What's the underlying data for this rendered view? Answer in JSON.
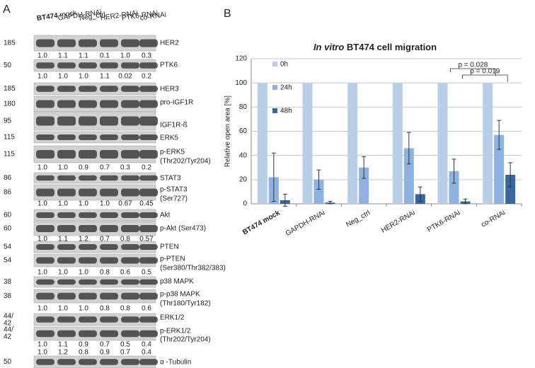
{
  "panel_a": {
    "letter": "A",
    "lanes": [
      {
        "bold": "BT474",
        "rest": "mock"
      },
      "GAPDH-RNAi",
      "Neg_ctrl",
      "HER2-RNAi",
      "PTK6-RNAi",
      "co-RNAi"
    ],
    "rows": [
      {
        "mw": [
          "185"
        ],
        "label": [
          "HER2"
        ],
        "quant": [
          [
            "1.0",
            "1.1",
            "1.1",
            "0.1",
            "1.0",
            "0.3"
          ]
        ]
      },
      {
        "mw": [
          "50"
        ],
        "label": [
          "PTK6"
        ],
        "quant": [
          [
            "1.0",
            "1.0",
            "1.0",
            "1.1",
            "0.02",
            "0.2"
          ]
        ]
      },
      {
        "mw": [
          "185"
        ],
        "label": [
          "HER3"
        ],
        "quant": []
      },
      {
        "mw": [
          "180"
        ],
        "label": [
          "pro-IGF1R"
        ],
        "quant": []
      },
      {
        "mw": [
          "95"
        ],
        "label": [
          "IGF1R-ß"
        ],
        "quant": []
      },
      {
        "mw": [
          "115"
        ],
        "label": [
          "ERK5"
        ],
        "quant": []
      },
      {
        "mw": [
          "115"
        ],
        "label": [
          "p-ERK5",
          "(Thr202/Tyr204)"
        ],
        "quant": [
          [
            "1.0",
            "1.0",
            "0.9",
            "0.7",
            "0.3",
            "0.2"
          ]
        ]
      },
      {
        "mw": [
          "86"
        ],
        "label": [
          "STAT3"
        ],
        "quant": []
      },
      {
        "mw": [
          "86"
        ],
        "label": [
          "p-STAT3",
          "(Ser727)"
        ],
        "quant": [
          [
            "1.0",
            "1.0",
            "1.0",
            "1.0",
            "0.67",
            "0.45"
          ]
        ]
      },
      {
        "mw": [
          "60"
        ],
        "label": [
          "Akt"
        ],
        "quant": []
      },
      {
        "mw": [
          "60"
        ],
        "label": [
          "p-Akt (Ser473)"
        ],
        "quant": [
          [
            "1.0",
            "1.1",
            "1.2",
            "0.7",
            "0.8",
            "0.57"
          ]
        ]
      },
      {
        "mw": [
          "54"
        ],
        "label": [
          "PTEN"
        ],
        "quant": []
      },
      {
        "mw": [
          "54"
        ],
        "label": [
          "p-PTEN",
          "(Ser380/Thr382/383)"
        ],
        "quant": [
          [
            "1.0",
            "1.0",
            "1.0",
            "0.8",
            "0.6",
            "0.5"
          ]
        ]
      },
      {
        "mw": [
          "38"
        ],
        "label": [
          "p38 MAPK"
        ],
        "quant": []
      },
      {
        "mw": [
          "38"
        ],
        "label": [
          "p-p38 MAPK",
          "(Thr180/Tyr182)"
        ],
        "quant": [
          [
            "1.0",
            "1.0",
            "1.0",
            "0.8",
            "0.8",
            "0.6"
          ]
        ]
      },
      {
        "mw": [
          "44/",
          "42"
        ],
        "label": [
          "ERK1/2"
        ],
        "quant": []
      },
      {
        "mw": [
          "44/",
          "42"
        ],
        "label": [
          "p-ERK1/2",
          "(Thr202/Tyr204)"
        ],
        "quant": [
          [
            "1.0",
            "1.1",
            "0.9",
            "0.7",
            "0.5",
            "0.4"
          ],
          [
            "1.0",
            "1.2",
            "0.8",
            "0.9",
            "0.7",
            "0.4"
          ]
        ]
      },
      {
        "mw": [
          "50"
        ],
        "label": [
          "α -Tubulin"
        ],
        "quant": []
      }
    ]
  },
  "panel_b": {
    "letter": "B"
  },
  "chart_data": {
    "type": "bar",
    "title_italic": "In vitro",
    "title": "BT474 cell migration",
    "y_label": "Relative open area [%]",
    "categories": [
      "BT474 mock",
      "GAPDH-RNAi",
      "Neg_ctrl",
      "HER2-RNAi",
      "PTK6-RNAi",
      "co-RNAi"
    ],
    "series": [
      {
        "name": "0h",
        "color": "#b9cfe8",
        "values": [
          100,
          100,
          100,
          100,
          100,
          100
        ],
        "errors": [
          0,
          0,
          0,
          0,
          0,
          0
        ]
      },
      {
        "name": "24h",
        "color": "#8db2e0",
        "values": [
          22,
          20,
          30,
          46,
          27,
          57
        ],
        "errors": [
          20,
          8,
          9,
          13,
          10,
          12
        ]
      },
      {
        "name": "48h",
        "color": "#36679d",
        "values": [
          3,
          1,
          0,
          8,
          2,
          24
        ],
        "errors": [
          5,
          1,
          0,
          6,
          2,
          10
        ]
      }
    ],
    "ylim": [
      0,
      120
    ],
    "yticks": [
      0,
      20,
      40,
      60,
      80,
      100,
      120
    ],
    "grid": true,
    "legend": "upper left",
    "annotations": [
      {
        "text": "p = 0.028"
      },
      {
        "text": "p = 0.019"
      }
    ]
  }
}
